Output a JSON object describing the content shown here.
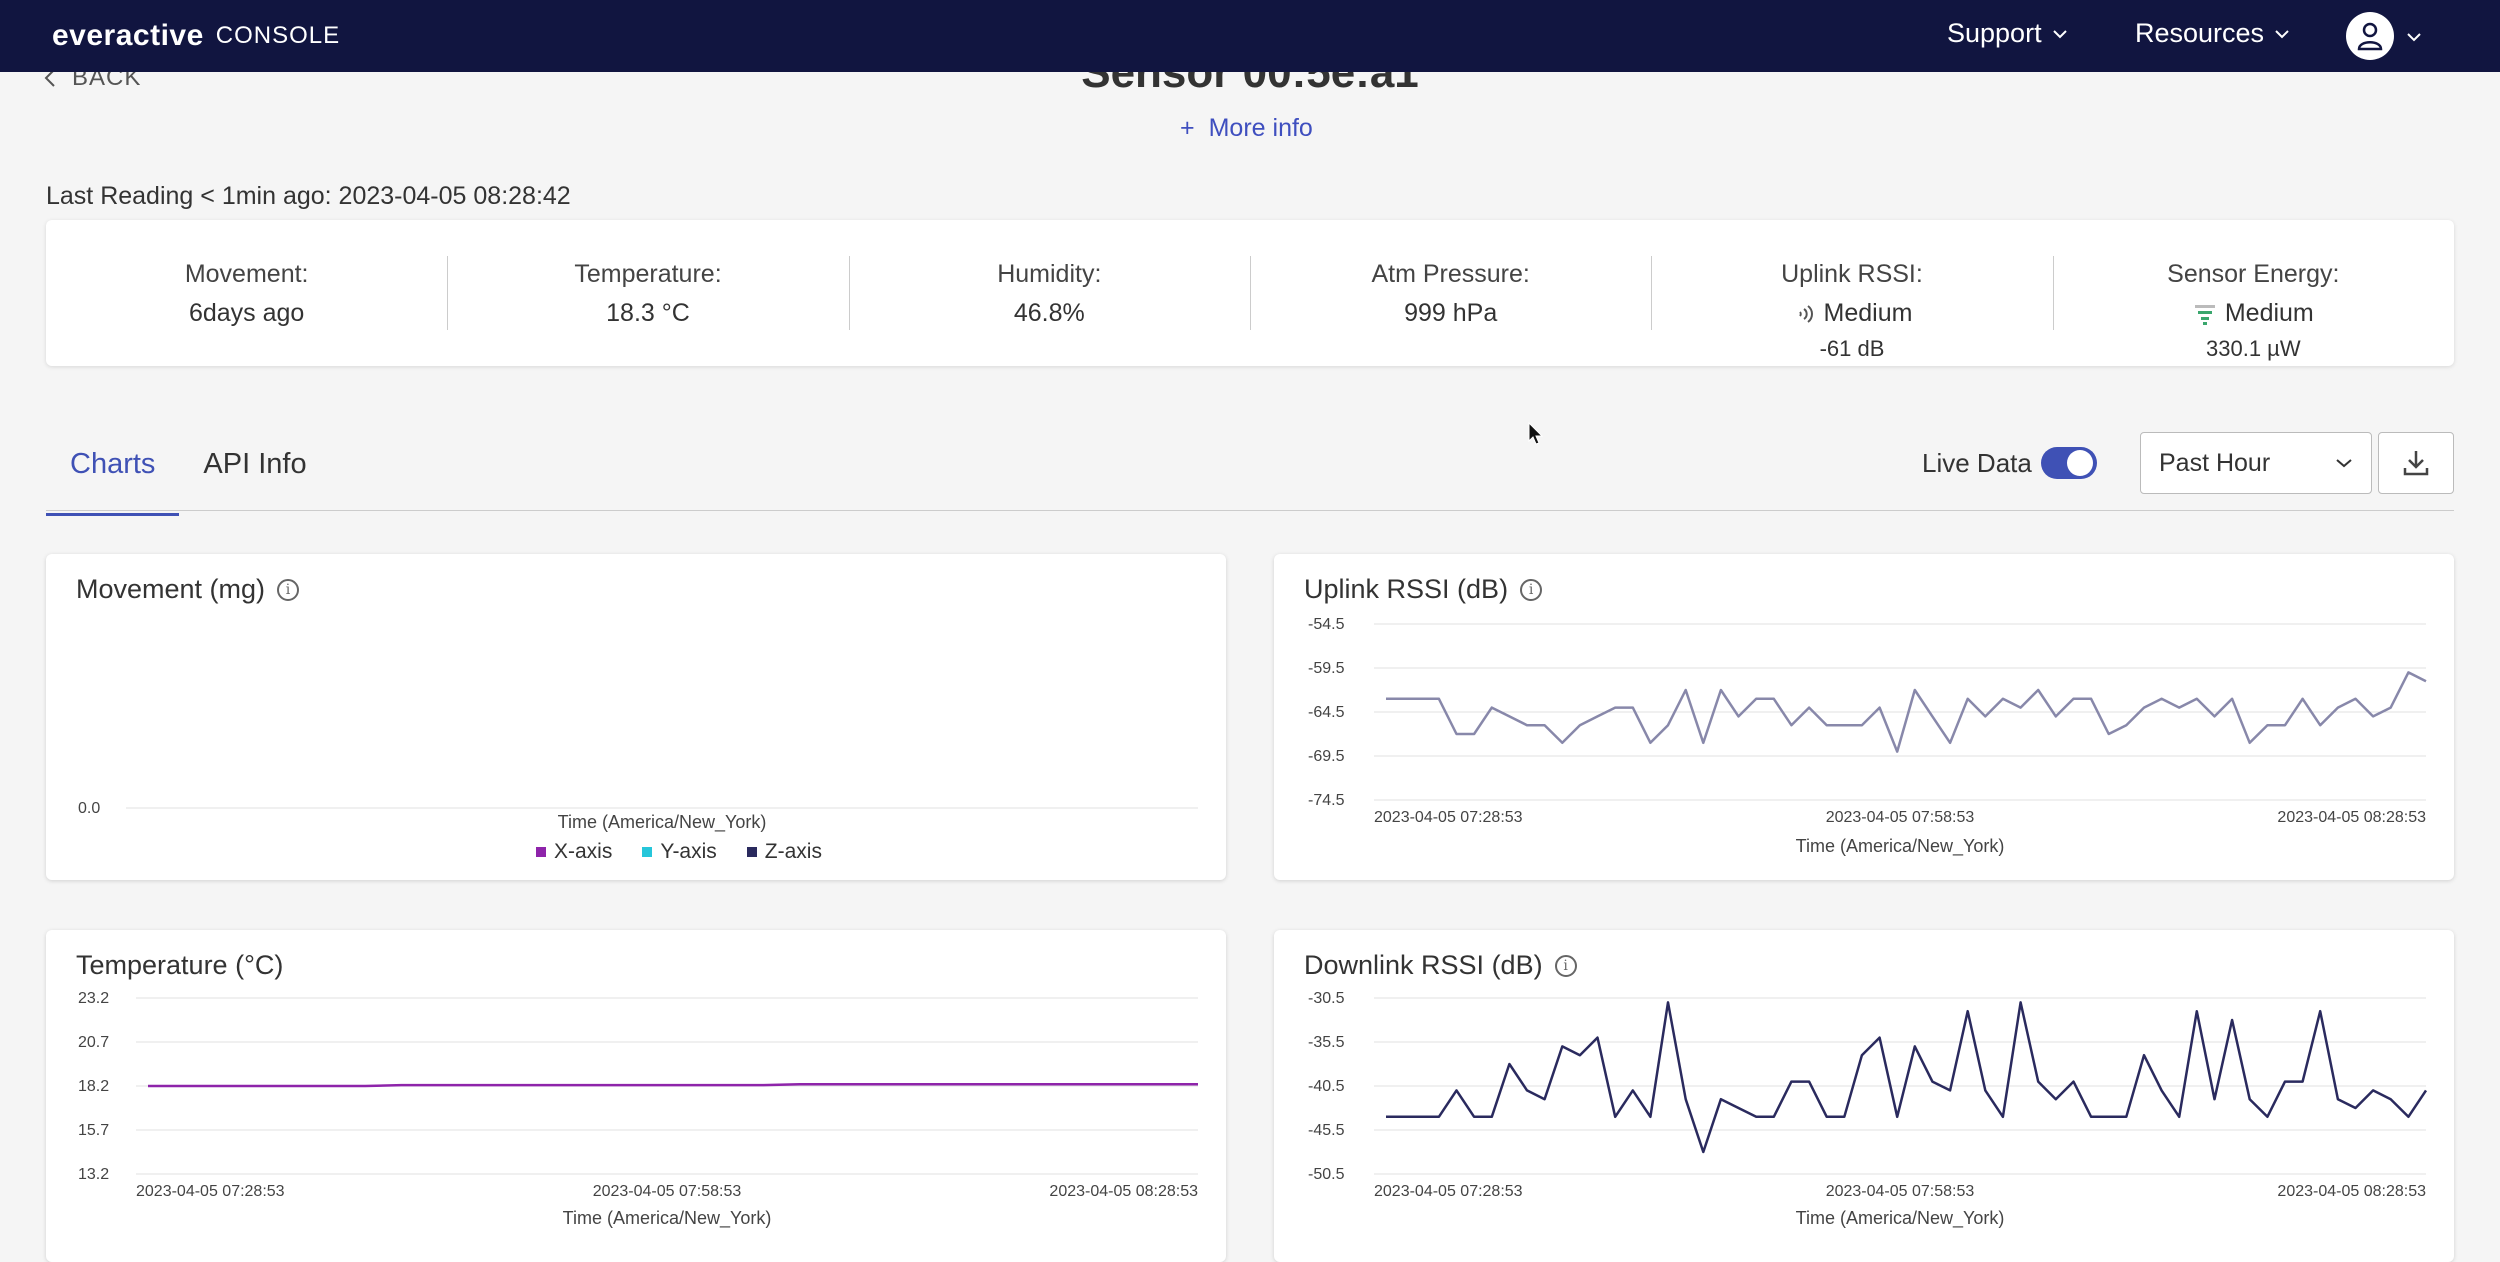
{
  "nav": {
    "brand": "everactive",
    "product": "CONSOLE",
    "support": "Support",
    "resources": "Resources"
  },
  "header": {
    "back": "BACK",
    "title": "Sensor 00:5e:a1",
    "more_info": "More info",
    "more_info_icon": "+"
  },
  "last_reading": "Last Reading < 1min ago: 2023-04-05 08:28:42",
  "stats": [
    {
      "label": "Movement:",
      "value": "6days ago"
    },
    {
      "label": "Temperature:",
      "value": "18.3 °C"
    },
    {
      "label": "Humidity:",
      "value": "46.8%"
    },
    {
      "label": "Atm Pressure:",
      "value": "999 hPa"
    },
    {
      "label": "Uplink RSSI:",
      "value": "Medium",
      "sub": "-61 dB",
      "icon": "signal-icon"
    },
    {
      "label": "Sensor Energy:",
      "value": "Medium",
      "sub": "330.1 µW",
      "icon": "energy-icon"
    }
  ],
  "tabs": [
    "Charts",
    "API Info"
  ],
  "controls": {
    "live_data": "Live Data",
    "live_data_on": true,
    "range": "Past Hour"
  },
  "colors": {
    "nav_bg": "#111540",
    "accent": "#3f51b5",
    "x_axis": "#8e24aa",
    "y_axis": "#26c6da",
    "z_axis": "#2a2a5e",
    "uplink_line": "#8888aa",
    "downlink_line": "#2a2a5e",
    "temp_line": "#8e24aa"
  },
  "chart_data": [
    {
      "title": "Movement (mg)",
      "type": "line",
      "xlabel": "Time (America/New_York)",
      "yticks": [
        "0.0"
      ],
      "legend": [
        "X-axis",
        "Y-axis",
        "Z-axis"
      ],
      "series": []
    },
    {
      "title": "Uplink RSSI (dB)",
      "type": "line",
      "xlabel": "Time (America/New_York)",
      "yticks": [
        "-54.5",
        "-59.5",
        "-64.5",
        "-69.5",
        "-74.5"
      ],
      "ylim": [
        -74.5,
        -54.5
      ],
      "xticks": [
        "2023-04-05 07:28:53",
        "2023-04-05 07:58:53",
        "2023-04-05 08:28:53"
      ],
      "values": [
        -63,
        -63,
        -63,
        -63,
        -67,
        -67,
        -64,
        -65,
        -66,
        -66,
        -68,
        -66,
        -65,
        -64,
        -64,
        -68,
        -66,
        -62,
        -68,
        -62,
        -65,
        -63,
        -63,
        -66,
        -64,
        -66,
        -66,
        -66,
        -64,
        -69,
        -62,
        -65,
        -68,
        -63,
        -65,
        -63,
        -64,
        -62,
        -65,
        -63,
        -63,
        -67,
        -66,
        -64,
        -63,
        -64,
        -63,
        -65,
        -63,
        -68,
        -66,
        -66,
        -63,
        -66,
        -64,
        -63,
        -65,
        -64,
        -60,
        -61
      ]
    },
    {
      "title": "Temperature (°C)",
      "type": "line",
      "xlabel": "Time (America/New_York)",
      "yticks": [
        "23.2",
        "20.7",
        "18.2",
        "15.7",
        "13.2"
      ],
      "ylim": [
        13.2,
        23.2
      ],
      "xticks": [
        "2023-04-05 07:28:53",
        "2023-04-05 07:58:53",
        "2023-04-05 08:28:53"
      ],
      "values": [
        18.2,
        18.2,
        18.2,
        18.2,
        18.2,
        18.2,
        18.2,
        18.25,
        18.25,
        18.25,
        18.25,
        18.25,
        18.25,
        18.25,
        18.25,
        18.25,
        18.25,
        18.25,
        18.3,
        18.3,
        18.3,
        18.3,
        18.3,
        18.3,
        18.3,
        18.3,
        18.3,
        18.3,
        18.3,
        18.3
      ]
    },
    {
      "title": "Downlink RSSI (dB)",
      "type": "line",
      "xlabel": "Time (America/New_York)",
      "yticks": [
        "-30.5",
        "-35.5",
        "-40.5",
        "-45.5",
        "-50.5"
      ],
      "ylim": [
        -50.5,
        -30.5
      ],
      "xticks": [
        "2023-04-05 07:28:53",
        "2023-04-05 07:58:53",
        "2023-04-05 08:28:53"
      ],
      "values": [
        -44,
        -44,
        -44,
        -44,
        -41,
        -44,
        -44,
        -38,
        -41,
        -42,
        -36,
        -37,
        -35,
        -44,
        -41,
        -44,
        -31,
        -42,
        -48,
        -42,
        -43,
        -44,
        -44,
        -40,
        -40,
        -44,
        -44,
        -37,
        -35,
        -44,
        -36,
        -40,
        -41,
        -32,
        -41,
        -44,
        -31,
        -40,
        -42,
        -40,
        -44,
        -44,
        -44,
        -37,
        -41,
        -44,
        -32,
        -42,
        -33,
        -42,
        -44,
        -40,
        -40,
        -32,
        -42,
        -43,
        -41,
        -42,
        -44,
        -41
      ]
    }
  ]
}
